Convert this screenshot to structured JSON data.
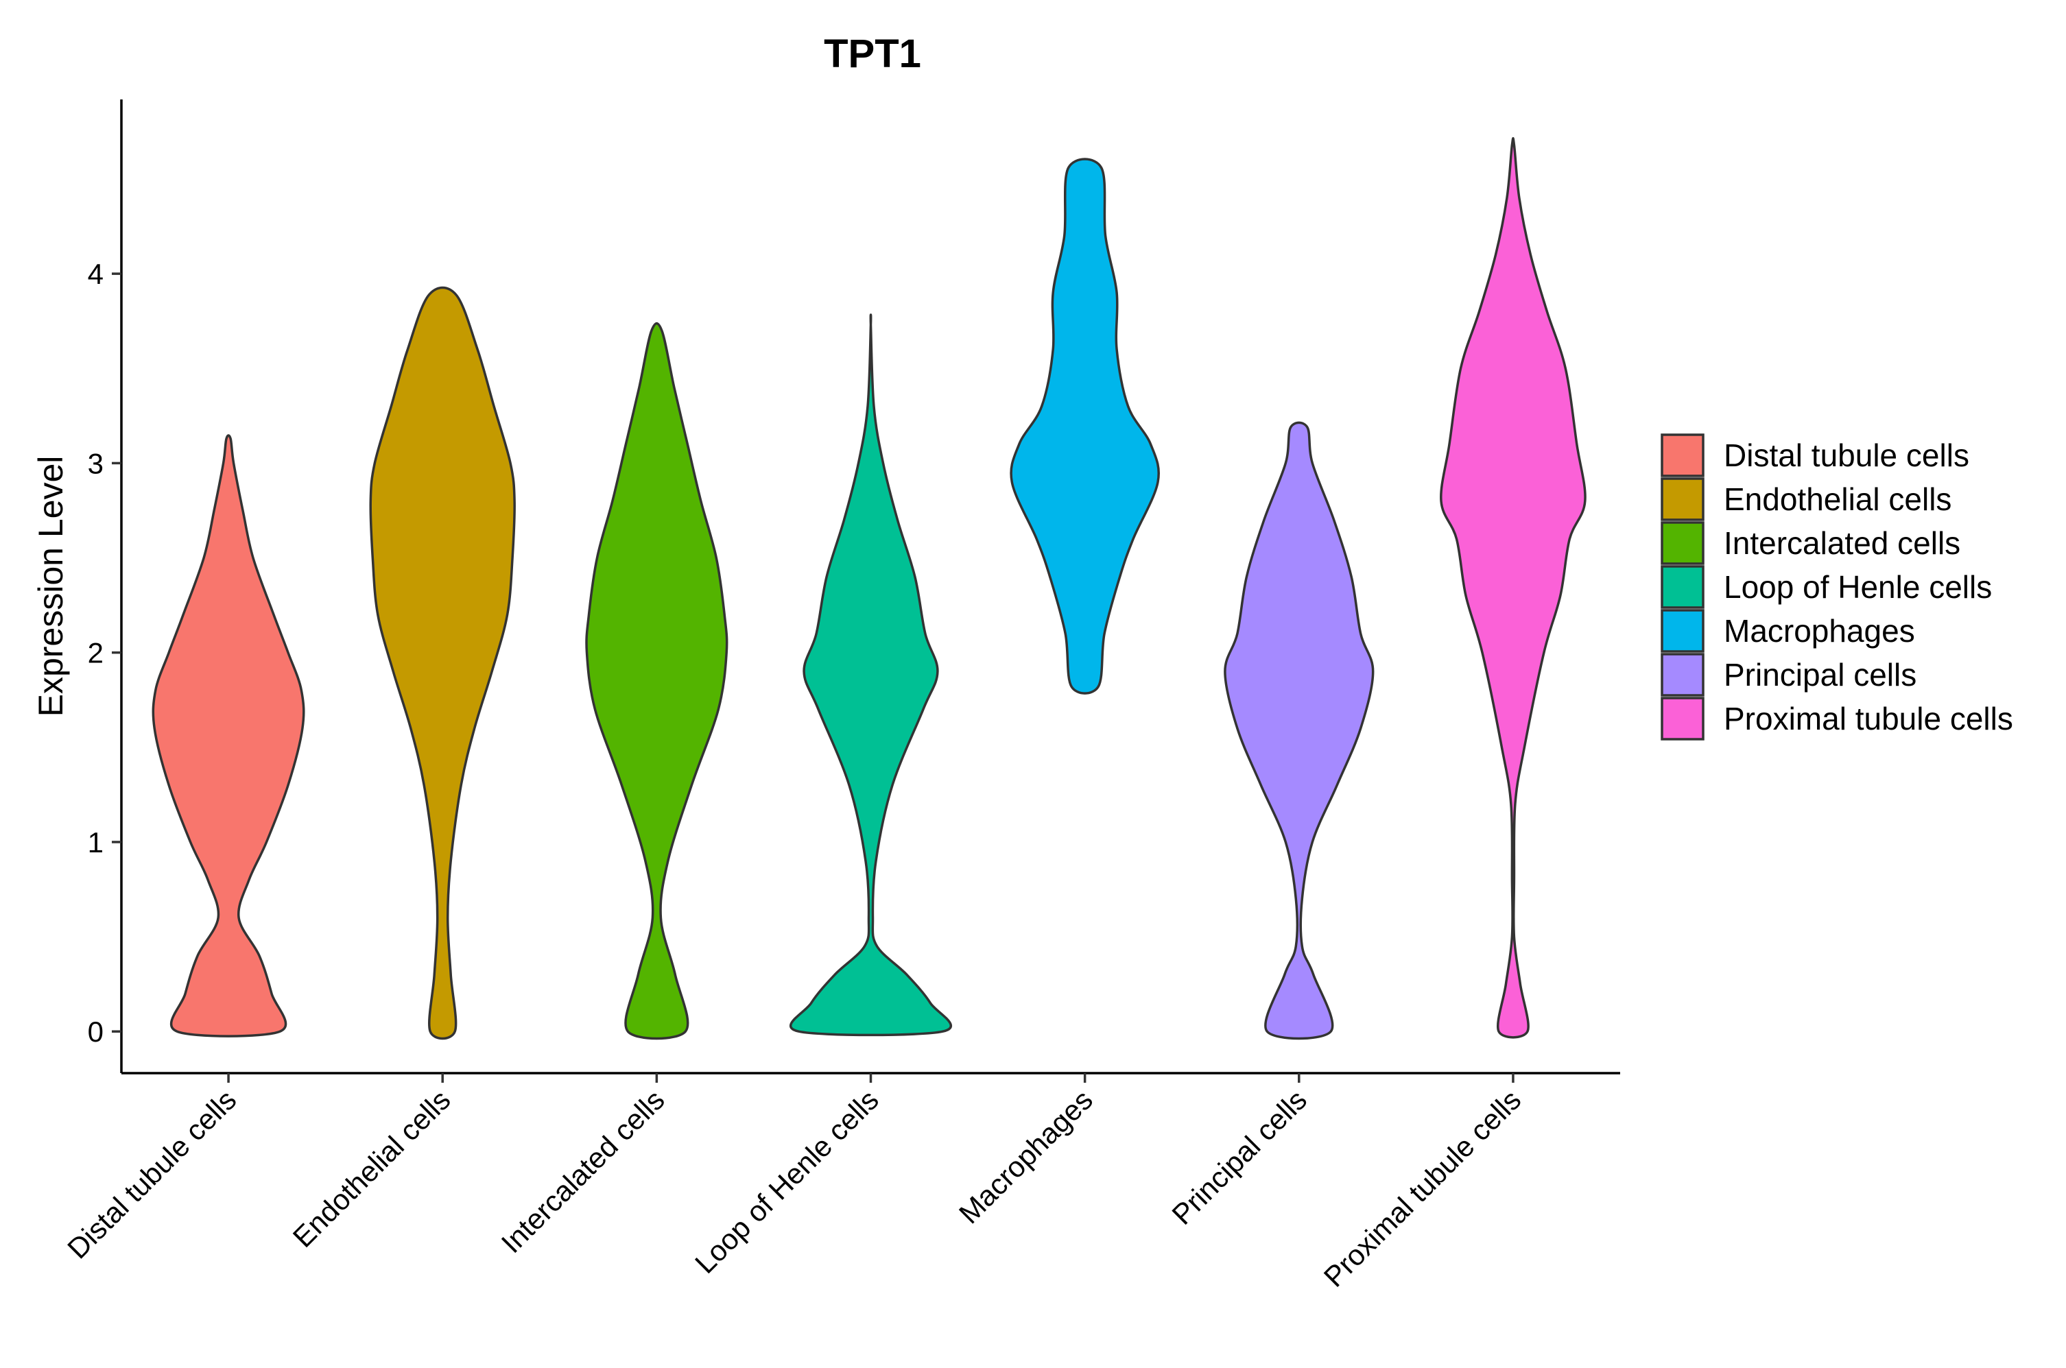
{
  "chart_data": {
    "type": "violin",
    "title": "TPT1",
    "xlabel": "",
    "ylabel": "Expression Level",
    "ylim": [
      -0.22,
      4.92
    ],
    "yticks": [
      0,
      1,
      2,
      3,
      4
    ],
    "grid": false,
    "legend_position": "right",
    "categories": [
      "Distal tubule cells",
      "Endothelial cells",
      "Intercalated cells",
      "Loop of Henle cells",
      "Macrophages",
      "Principal cells",
      "Proximal tubule cells"
    ],
    "series": [
      {
        "name": "Distal tubule cells",
        "color": "#F8766D",
        "min": 0,
        "max": 3.13,
        "density_profile": [
          [
            0,
            0.5
          ],
          [
            0.2,
            0.42
          ],
          [
            0.4,
            0.3
          ],
          [
            0.6,
            0.1
          ],
          [
            0.8,
            0.2
          ],
          [
            1.0,
            0.37
          ],
          [
            1.3,
            0.58
          ],
          [
            1.6,
            0.72
          ],
          [
            1.8,
            0.71
          ],
          [
            2.0,
            0.58
          ],
          [
            2.2,
            0.44
          ],
          [
            2.5,
            0.24
          ],
          [
            2.75,
            0.14
          ],
          [
            3.0,
            0.05
          ],
          [
            3.13,
            0.02
          ]
        ]
      },
      {
        "name": "Endothelial cells",
        "color": "#C49A00",
        "min": 0,
        "max": 3.89,
        "density_profile": [
          [
            0,
            0.12
          ],
          [
            0.3,
            0.08
          ],
          [
            0.6,
            0.05
          ],
          [
            0.9,
            0.08
          ],
          [
            1.3,
            0.18
          ],
          [
            1.6,
            0.31
          ],
          [
            1.9,
            0.48
          ],
          [
            2.2,
            0.63
          ],
          [
            2.5,
            0.68
          ],
          [
            2.8,
            0.7
          ],
          [
            3.0,
            0.66
          ],
          [
            3.3,
            0.5
          ],
          [
            3.6,
            0.34
          ],
          [
            3.89,
            0.13
          ]
        ]
      },
      {
        "name": "Intercalated cells",
        "color": "#53B400",
        "min": 0,
        "max": 3.7,
        "density_profile": [
          [
            0,
            0.28
          ],
          [
            0.3,
            0.18
          ],
          [
            0.6,
            0.04
          ],
          [
            0.9,
            0.11
          ],
          [
            1.3,
            0.34
          ],
          [
            1.7,
            0.6
          ],
          [
            2.0,
            0.68
          ],
          [
            2.2,
            0.66
          ],
          [
            2.5,
            0.58
          ],
          [
            2.8,
            0.43
          ],
          [
            3.1,
            0.3
          ],
          [
            3.4,
            0.17
          ],
          [
            3.7,
            0.05
          ]
        ]
      },
      {
        "name": "Loop of Henle cells",
        "color": "#00C094",
        "min": 0,
        "max": 3.73,
        "density_profile": [
          [
            0,
            0.7
          ],
          [
            0.15,
            0.58
          ],
          [
            0.3,
            0.35
          ],
          [
            0.45,
            0.06
          ],
          [
            0.6,
            0.02
          ],
          [
            0.9,
            0.05
          ],
          [
            1.3,
            0.21
          ],
          [
            1.7,
            0.51
          ],
          [
            1.9,
            0.65
          ],
          [
            2.1,
            0.53
          ],
          [
            2.4,
            0.43
          ],
          [
            2.7,
            0.26
          ],
          [
            3.0,
            0.12
          ],
          [
            3.3,
            0.03
          ],
          [
            3.73,
            0.0
          ]
        ]
      },
      {
        "name": "Macrophages",
        "color": "#00B6EB",
        "min": 1.82,
        "max": 4.56,
        "density_profile": [
          [
            1.82,
            0.13
          ],
          [
            2.1,
            0.19
          ],
          [
            2.4,
            0.34
          ],
          [
            2.6,
            0.47
          ],
          [
            2.9,
            0.71
          ],
          [
            3.1,
            0.64
          ],
          [
            3.3,
            0.42
          ],
          [
            3.6,
            0.31
          ],
          [
            3.9,
            0.31
          ],
          [
            4.2,
            0.2
          ],
          [
            4.56,
            0.16
          ]
        ]
      },
      {
        "name": "Principal cells",
        "color": "#A58AFF",
        "min": 0,
        "max": 3.19,
        "density_profile": [
          [
            0,
            0.31
          ],
          [
            0.3,
            0.14
          ],
          [
            0.45,
            0.03
          ],
          [
            0.7,
            0.03
          ],
          [
            1.0,
            0.13
          ],
          [
            1.3,
            0.37
          ],
          [
            1.6,
            0.6
          ],
          [
            1.9,
            0.72
          ],
          [
            2.1,
            0.6
          ],
          [
            2.4,
            0.51
          ],
          [
            2.7,
            0.34
          ],
          [
            3.0,
            0.13
          ],
          [
            3.19,
            0.08
          ]
        ]
      },
      {
        "name": "Proximal tubule cells",
        "color": "#FB61D7",
        "min": 0,
        "max": 4.68,
        "density_profile": [
          [
            0,
            0.14
          ],
          [
            0.25,
            0.07
          ],
          [
            0.5,
            0.01
          ],
          [
            0.8,
            0.01
          ],
          [
            1.2,
            0.02
          ],
          [
            1.5,
            0.11
          ],
          [
            2.0,
            0.3
          ],
          [
            2.3,
            0.46
          ],
          [
            2.6,
            0.55
          ],
          [
            2.8,
            0.7
          ],
          [
            3.1,
            0.62
          ],
          [
            3.5,
            0.51
          ],
          [
            3.8,
            0.33
          ],
          [
            4.1,
            0.17
          ],
          [
            4.4,
            0.06
          ],
          [
            4.68,
            0.01
          ]
        ]
      }
    ]
  }
}
